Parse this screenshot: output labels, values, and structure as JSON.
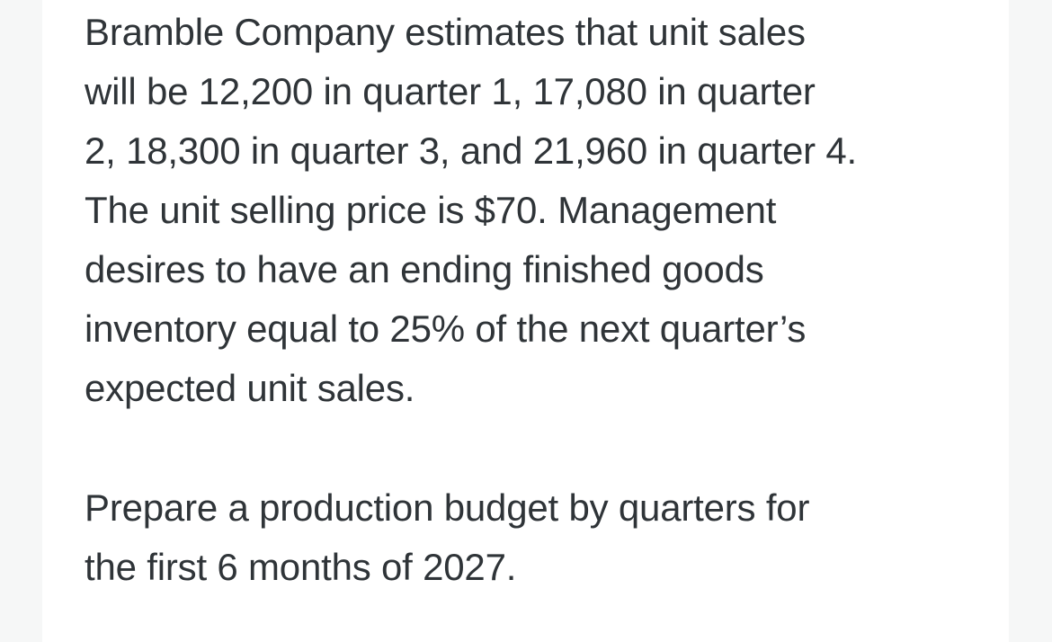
{
  "problem": {
    "paragraph_1_lines": [
      "Bramble Company estimates that unit sales",
      "will be 12,200 in quarter 1, 17,080 in quarter",
      "2, 18,300 in quarter 3, and 21,960 in quarter 4.",
      "The unit selling price is $70. Management",
      "desires to have an ending finished goods",
      "inventory equal to 25% of the next quarter’s",
      "expected unit sales."
    ],
    "paragraph_2_lines": [
      "Prepare a production budget by quarters for",
      "the first 6 months of 2027."
    ]
  }
}
